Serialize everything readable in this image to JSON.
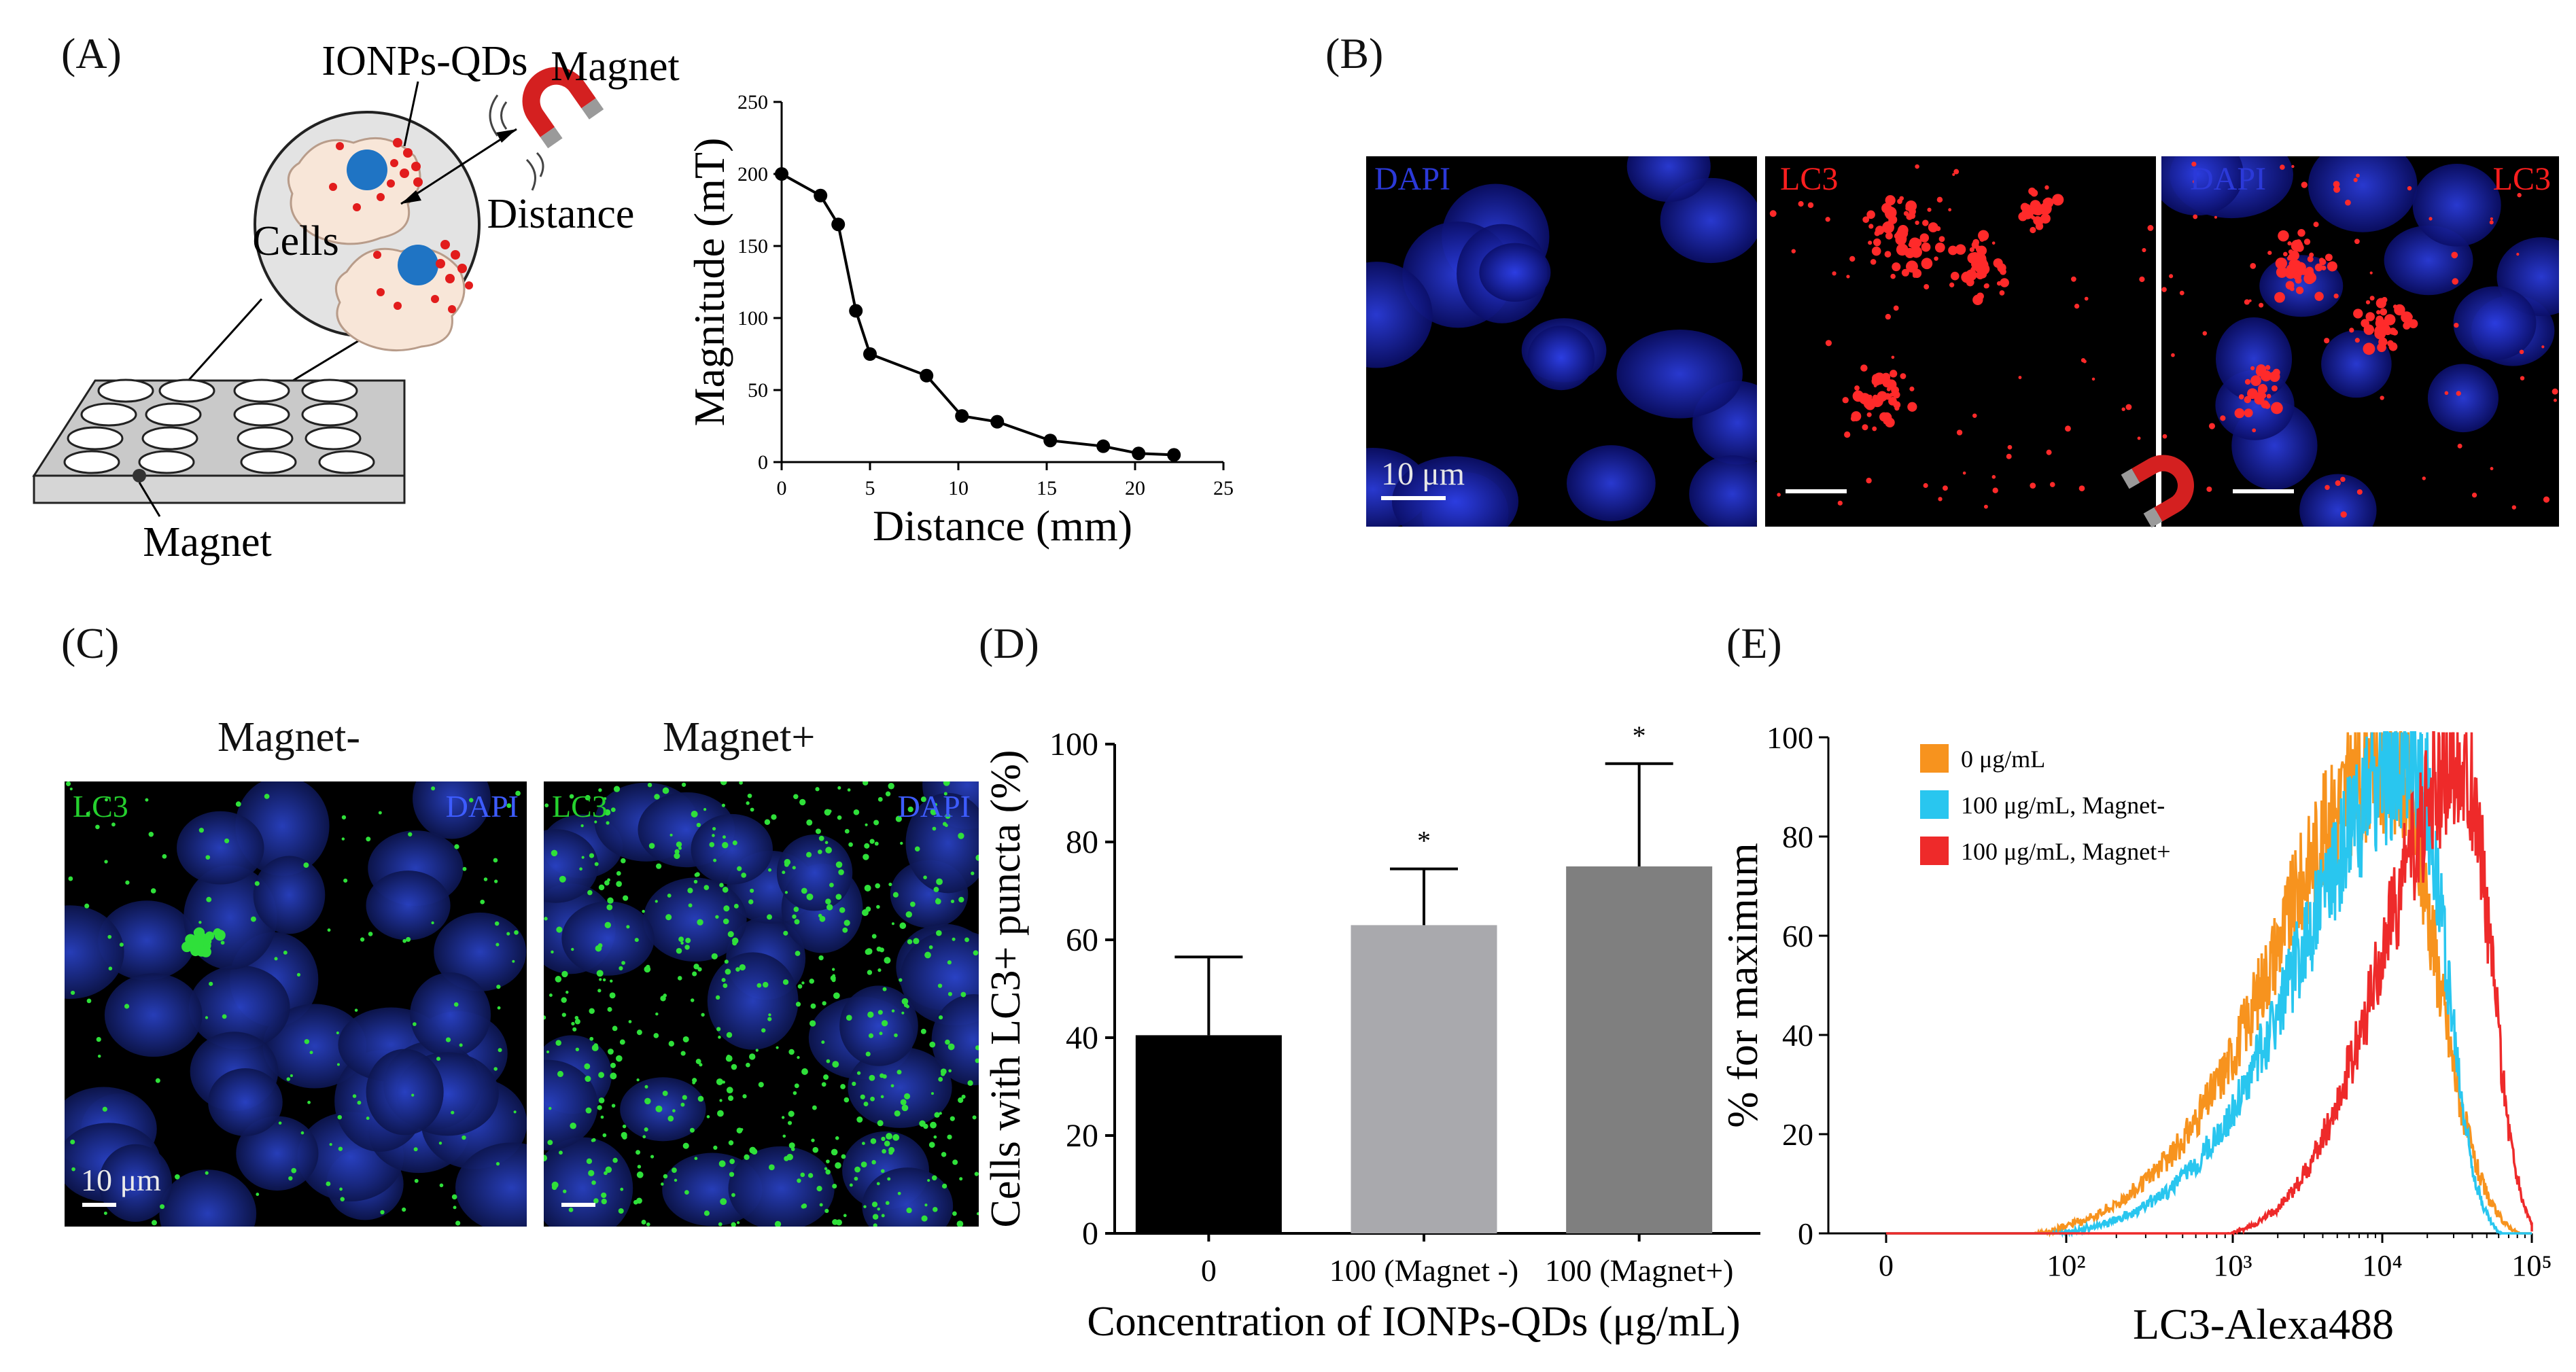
{
  "panel_labels": {
    "a": "(A)",
    "b": "(B)",
    "c": "(C)",
    "d": "(D)",
    "e": "(E)"
  },
  "panel_a": {
    "schematic": {
      "ionps_label": "IONPs-QDs",
      "magnet_label": "Magnet",
      "distance_label": "Distance",
      "cells_label": "Cells",
      "plate_magnet_label": "Magnet"
    },
    "colors": {
      "nucleus": "#1f74c4",
      "particle": "#e21c1c",
      "magnet": "#d42020",
      "cell": "#f8e6d8",
      "disc": "#d9d9d9"
    }
  },
  "panel_b": {
    "images": [
      {
        "label_left": "DAPI",
        "label_right": "",
        "scalebar_text": "10 μm"
      },
      {
        "label_left": "LC3",
        "label_right": "",
        "scalebar_text": ""
      },
      {
        "label_left": "DAPI",
        "label_right": "LC3",
        "scalebar_text": ""
      }
    ],
    "colors": {
      "blue": "#2b39d8",
      "red": "#ff1e1e"
    }
  },
  "panel_c": {
    "images": [
      {
        "title": "Magnet-",
        "label_left": "LC3",
        "label_right": "DAPI",
        "scalebar_text": "10 μm"
      },
      {
        "title": "Magnet+",
        "label_left": "LC3",
        "label_right": "DAPI",
        "scalebar_text": ""
      }
    ],
    "colors": {
      "green": "#25d12e",
      "blue": "#2536b8"
    }
  },
  "chart_data": [
    {
      "id": "A",
      "type": "line",
      "title": "",
      "xlabel": "Distance (mm)",
      "ylabel": "Magnitude (mT)",
      "x": [
        0,
        2.2,
        3.2,
        4.2,
        5,
        8.2,
        10.2,
        12.2,
        15.2,
        18.2,
        20.2,
        22.2
      ],
      "y": [
        200,
        185,
        165,
        105,
        75,
        60,
        32,
        28,
        15,
        11,
        6,
        5
      ],
      "xlim": [
        0,
        25
      ],
      "ylim": [
        0,
        250
      ],
      "xticks": [
        0,
        5,
        10,
        15,
        20,
        25
      ],
      "yticks": [
        0,
        50,
        100,
        150,
        200,
        250
      ]
    },
    {
      "id": "D",
      "type": "bar",
      "xlabel": "Concentration of IONPs-QDs (μg/mL)",
      "ylabel": "Cells with LC3+ puncta (%)",
      "categories": [
        "0",
        "100 (Magnet -)",
        "100 (Magnet+)"
      ],
      "values": [
        40.5,
        63,
        75
      ],
      "errors": [
        16,
        11.5,
        21
      ],
      "significance": [
        "",
        "*",
        "*"
      ],
      "colors": [
        "#000000",
        "#a9a9ad",
        "#7f7f7f"
      ],
      "ylim": [
        0,
        100
      ],
      "yticks": [
        0,
        20,
        40,
        60,
        80,
        100
      ]
    },
    {
      "id": "E",
      "type": "line",
      "xlabel": "LC3-Alexa488",
      "ylabel": "% for maximum",
      "xscale": "log",
      "xticks": [
        "0",
        "10²",
        "10³",
        "10⁴",
        "10⁵"
      ],
      "yticks": [
        0,
        20,
        40,
        60,
        80,
        100
      ],
      "ylim": [
        0,
        100
      ],
      "legend": "top-left",
      "series": [
        {
          "name": "0 μg/mL",
          "color": "#f7931e",
          "peak_log10": 4.05,
          "width": 0.42,
          "skew": 0.55
        },
        {
          "name": "100 μg/mL, Magnet-",
          "color": "#29c6ef",
          "peak_log10": 4.22,
          "width": 0.34,
          "skew": 0.45
        },
        {
          "name": "100 μg/mL, Magnet+",
          "color": "#ee2a2a",
          "peak_log10": 4.55,
          "width": 0.27,
          "skew": 0.5
        }
      ]
    }
  ]
}
